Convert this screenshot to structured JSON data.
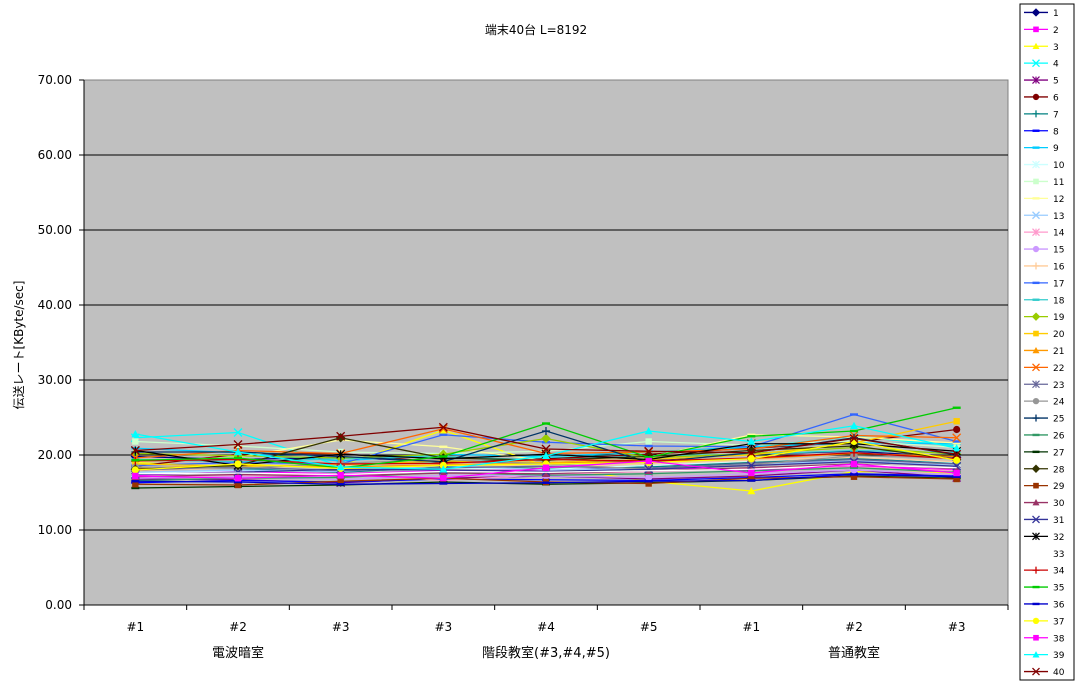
{
  "chart_data": {
    "type": "line",
    "title": "端末40台 L=8192",
    "ylabel": "伝送レート[KByte/sec]",
    "xlabel": "",
    "ylim": [
      0,
      70
    ],
    "yticks": [
      "0.00",
      "10.00",
      "20.00",
      "30.00",
      "40.00",
      "50.00",
      "60.00",
      "70.00"
    ],
    "categories": [
      "#1",
      "#2",
      "#3",
      "#3",
      "#4",
      "#5",
      "#1",
      "#2",
      "#3"
    ],
    "groups": [
      {
        "label": "電波暗室",
        "from": 0,
        "to": 2
      },
      {
        "label": "階段教室(#3,#4,#5)",
        "from": 3,
        "to": 5
      },
      {
        "label": "普通教室",
        "from": 6,
        "to": 8
      }
    ],
    "grid": true,
    "legend_position": "right",
    "plot_background": "#c0c0c0",
    "series": [
      {
        "name": "1",
        "color": "#000080",
        "marker": "diamond",
        "values": [
          19.8,
          19.4,
          19.7,
          19.1,
          19.0,
          19.3,
          20.1,
          20.5,
          19.7
        ]
      },
      {
        "name": "2",
        "color": "#ff00ff",
        "marker": "square",
        "values": [
          17.3,
          17.8,
          17.5,
          17.9,
          18.0,
          18.3,
          18.0,
          18.6,
          18.0
        ]
      },
      {
        "name": "3",
        "color": "#ffff00",
        "marker": "triangle",
        "values": [
          19.0,
          18.4,
          18.6,
          23.3,
          18.5,
          16.5,
          15.2,
          17.8,
          17.6
        ]
      },
      {
        "name": "4",
        "color": "#00ffff",
        "marker": "x",
        "values": [
          22.3,
          23.0,
          18.5,
          19.0,
          19.6,
          20.1,
          21.0,
          22.5,
          21.2
        ]
      },
      {
        "name": "5",
        "color": "#800080",
        "marker": "star",
        "values": [
          16.8,
          16.7,
          16.3,
          16.9,
          17.2,
          16.8,
          17.2,
          18.0,
          17.0
        ]
      },
      {
        "name": "6",
        "color": "#800000",
        "marker": "circle",
        "values": [
          18.5,
          20.1,
          20.2,
          19.0,
          19.5,
          20.1,
          20.9,
          21.7,
          23.4
        ]
      },
      {
        "name": "7",
        "color": "#008080",
        "marker": "plus",
        "values": [
          18.3,
          18.2,
          17.7,
          18.4,
          18.2,
          18.4,
          19.0,
          19.5,
          18.9
        ]
      },
      {
        "name": "8",
        "color": "#0000ff",
        "marker": "dash",
        "values": [
          16.3,
          16.6,
          16.4,
          16.8,
          16.7,
          16.6,
          17.0,
          17.5,
          17.2
        ]
      },
      {
        "name": "9",
        "color": "#00ccff",
        "marker": "dash",
        "values": [
          20.9,
          20.3,
          19.2,
          20.1,
          19.8,
          20.4,
          21.1,
          21.6,
          21.5
        ]
      },
      {
        "name": "10",
        "color": "#ccffff",
        "marker": "star",
        "values": [
          17.6,
          17.9,
          18.0,
          18.3,
          18.1,
          18.6,
          19.2,
          19.8,
          19.0
        ]
      },
      {
        "name": "11",
        "color": "#ccffcc",
        "marker": "square",
        "values": [
          21.8,
          21.2,
          20.4,
          20.2,
          20.5,
          21.8,
          21.3,
          21.9,
          21.0
        ]
      },
      {
        "name": "12",
        "color": "#ffff99",
        "marker": "dash",
        "values": [
          19.1,
          19.7,
          22.0,
          21.1,
          19.2,
          19.7,
          22.7,
          22.4,
          21.6
        ]
      },
      {
        "name": "13",
        "color": "#99ccff",
        "marker": "x",
        "values": [
          17.7,
          18.0,
          17.8,
          18.6,
          18.0,
          18.2,
          18.8,
          19.2,
          18.6
        ]
      },
      {
        "name": "14",
        "color": "#ff99cc",
        "marker": "star",
        "values": [
          17.0,
          17.2,
          17.5,
          16.6,
          17.4,
          17.8,
          18.2,
          18.4,
          17.9
        ]
      },
      {
        "name": "15",
        "color": "#cc99ff",
        "marker": "circle",
        "values": [
          16.9,
          17.1,
          16.7,
          17.3,
          17.2,
          17.0,
          17.5,
          18.0,
          17.4
        ]
      },
      {
        "name": "16",
        "color": "#ffcc99",
        "marker": "plus",
        "values": [
          17.9,
          18.3,
          18.6,
          18.9,
          18.4,
          18.8,
          19.3,
          19.7,
          19.1
        ]
      },
      {
        "name": "17",
        "color": "#3366ff",
        "marker": "dash",
        "values": [
          18.6,
          19.0,
          18.8,
          22.7,
          21.7,
          21.2,
          21.1,
          25.4,
          21.8
        ]
      },
      {
        "name": "18",
        "color": "#33cccc",
        "marker": "dash",
        "values": [
          19.4,
          19.1,
          19.5,
          19.8,
          19.3,
          19.9,
          20.1,
          20.6,
          20.3
        ]
      },
      {
        "name": "19",
        "color": "#99cc00",
        "marker": "diamond",
        "values": [
          20.2,
          19.9,
          19.6,
          20.1,
          22.2,
          19.6,
          20.2,
          21.0,
          20.1
        ]
      },
      {
        "name": "20",
        "color": "#ffcc00",
        "marker": "square",
        "values": [
          18.8,
          18.5,
          18.7,
          19.2,
          19.0,
          19.4,
          20.0,
          21.6,
          24.5
        ]
      },
      {
        "name": "21",
        "color": "#ff9900",
        "marker": "triangle",
        "values": [
          18.2,
          18.7,
          18.4,
          18.7,
          18.9,
          19.1,
          19.5,
          20.2,
          19.8
        ]
      },
      {
        "name": "22",
        "color": "#ff6600",
        "marker": "x",
        "values": [
          19.6,
          20.6,
          20.2,
          23.5,
          20.2,
          20.4,
          20.8,
          22.6,
          22.3
        ]
      },
      {
        "name": "23",
        "color": "#666699",
        "marker": "star",
        "values": [
          18.0,
          18.4,
          17.9,
          18.3,
          18.5,
          18.2,
          18.9,
          19.4,
          18.8
        ]
      },
      {
        "name": "24",
        "color": "#969696",
        "marker": "circle",
        "values": [
          18.4,
          18.2,
          18.9,
          19.4,
          18.8,
          18.1,
          18.7,
          19.9,
          19.6
        ]
      },
      {
        "name": "25",
        "color": "#003366",
        "marker": "plus",
        "values": [
          20.4,
          20.4,
          19.8,
          19.1,
          23.2,
          19.0,
          20.3,
          22.3,
          20.0
        ]
      },
      {
        "name": "26",
        "color": "#339966",
        "marker": "dash",
        "values": [
          16.6,
          16.9,
          17.0,
          17.7,
          17.3,
          17.5,
          17.9,
          18.3,
          17.7
        ]
      },
      {
        "name": "27",
        "color": "#003300",
        "marker": "dash",
        "values": [
          15.6,
          15.8,
          16.0,
          16.4,
          16.1,
          16.3,
          16.6,
          17.2,
          16.9
        ]
      },
      {
        "name": "28",
        "color": "#333300",
        "marker": "diamond",
        "values": [
          18.1,
          18.6,
          22.3,
          19.6,
          19.3,
          19.8,
          20.6,
          21.2,
          19.4
        ]
      },
      {
        "name": "29",
        "color": "#993300",
        "marker": "square",
        "values": [
          16.1,
          16.0,
          16.5,
          16.9,
          16.4,
          16.2,
          16.9,
          17.1,
          16.8
        ]
      },
      {
        "name": "30",
        "color": "#993366",
        "marker": "triangle",
        "values": [
          17.1,
          17.4,
          17.2,
          17.6,
          17.5,
          17.9,
          18.3,
          18.8,
          18.2
        ]
      },
      {
        "name": "31",
        "color": "#333399",
        "marker": "x",
        "values": [
          17.4,
          17.7,
          18.1,
          18.0,
          17.8,
          18.1,
          18.6,
          19.1,
          18.5
        ]
      },
      {
        "name": "32",
        "color": "#000000",
        "marker": "star",
        "values": [
          20.6,
          18.6,
          20.1,
          19.5,
          20.1,
          19.4,
          21.5,
          21.5,
          20.5
        ]
      },
      {
        "name": "33",
        "color": "#ffffff",
        "marker": "none",
        "values": [
          17.5,
          17.6,
          17.4,
          17.8,
          17.7,
          17.9,
          18.1,
          18.7,
          18.3
        ]
      },
      {
        "name": "34",
        "color": "#cc0000",
        "marker": "plus",
        "values": [
          19.2,
          19.4,
          18.8,
          18.9,
          19.4,
          19.2,
          19.6,
          20.3,
          19.5
        ]
      },
      {
        "name": "35",
        "color": "#00cc00",
        "marker": "dash",
        "values": [
          19.3,
          19.6,
          18.3,
          19.8,
          24.2,
          19.7,
          22.5,
          23.2,
          26.3
        ]
      },
      {
        "name": "36",
        "color": "#0000cc",
        "marker": "dash",
        "values": [
          16.5,
          16.4,
          16.1,
          16.2,
          16.3,
          16.5,
          16.6,
          17.4,
          17.1
        ]
      },
      {
        "name": "37",
        "color": "#ffff00",
        "marker": "circle",
        "values": [
          18.0,
          18.8,
          18.2,
          18.6,
          18.8,
          19.0,
          19.5,
          21.8,
          19.3
        ]
      },
      {
        "name": "38",
        "color": "#ff00ff",
        "marker": "square",
        "values": [
          17.2,
          16.9,
          17.3,
          16.9,
          18.3,
          19.2,
          17.6,
          18.8,
          17.6
        ]
      },
      {
        "name": "39",
        "color": "#00ffff",
        "marker": "triangle",
        "values": [
          22.8,
          20.4,
          18.4,
          18.1,
          19.9,
          23.2,
          21.8,
          23.9,
          20.9
        ]
      },
      {
        "name": "40",
        "color": "#800000",
        "marker": "x",
        "values": [
          20.6,
          21.4,
          22.5,
          23.7,
          20.8,
          20.5,
          20.3,
          22.2,
          20.1
        ]
      }
    ]
  }
}
